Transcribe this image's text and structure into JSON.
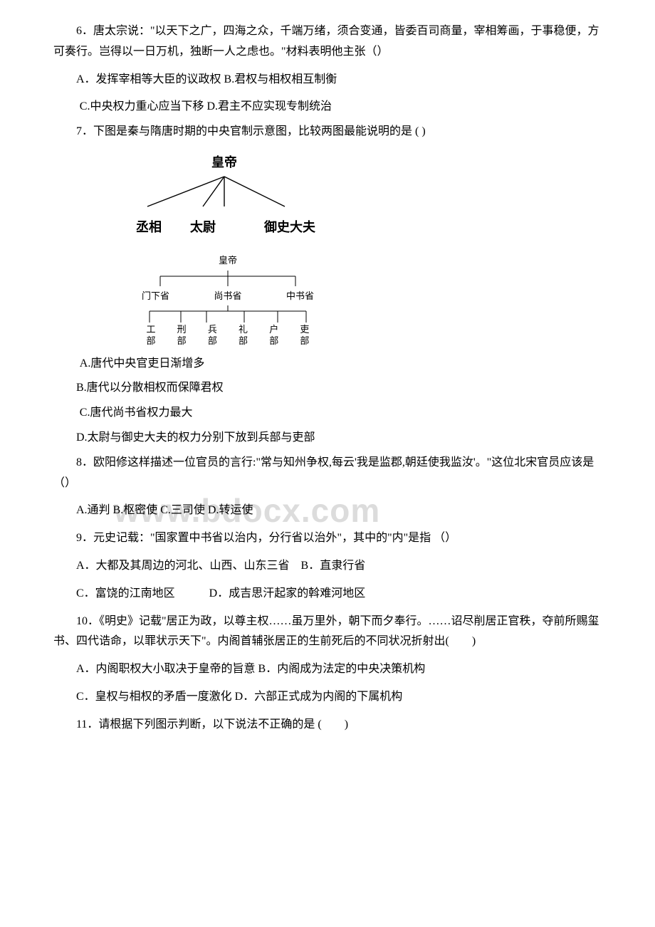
{
  "watermark": "www.bdocx.com",
  "q6": {
    "stem": "6．唐太宗说：\"以天下之广，四海之众，千端万绪，须合变通，皆委百司商量，宰相筹画，于事稳便，方可奏行。岂得以一日万机，独断一人之虑也。\"材料表明他主张（）",
    "lineA": "A．发挥宰相等大臣的议政权 B.君权与相权相互制衡",
    "lineC": "C.中央权力重心应当下移 D.君主不应实现专制统治"
  },
  "q7": {
    "stem": "7．下图是秦与隋唐时期的中央官制示意图，比较两图最能说明的是 ( )",
    "d1": {
      "top": "皇帝",
      "l1": "丞相",
      "l2": "太尉",
      "l3": "御史大夫"
    },
    "d2": {
      "top": "皇帝",
      "mid": [
        "门下省",
        "尚书省",
        "中书省"
      ],
      "bot": [
        "工部",
        "刑部",
        "兵部",
        "礼部",
        "户部",
        "吏部"
      ]
    },
    "optA": "A.唐代中央官吏日渐增多",
    "optB": "B.唐代以分散相权而保障君权",
    "optC": "C.唐代尚书省权力最大",
    "optD": "D.太尉与御史大夫的权力分别下放到兵部与吏部"
  },
  "q8": {
    "stem": "8．欧阳修这样描述一位官员的言行:\"常与知州争权,每云'我是监郡,朝廷使我监汝'。\"这位北宋官员应该是（）",
    "opts": "A.通判  B.枢密使  C.三司使  D.转运使"
  },
  "q9": {
    "stem": "9．元史记载：\"国家置中书省以治内，分行省以治外\"，其中的\"内\"是指 （）",
    "lineA": "A．大都及其周边的河北、山西、山东三省　B．直隶行省",
    "lineC": "C．富饶的江南地区　　　D．成吉思汗起家的斡难河地区"
  },
  "q10": {
    "stem": "10．《明史》记载\"居正为政，以尊主权……虽万里外，朝下而夕奉行。……诏尽削居正官秩，夺前所赐玺书、四代诰命，以罪状示天下\"。内阁首辅张居正的生前死后的不同状况折射出(　　)",
    "lineA": "A．内阁职权大小取决于皇帝的旨意 B．内阁成为法定的中央决策机构",
    "lineC": "C．皇权与相权的矛盾一度激化 D．六部正式成为内阁的下属机构"
  },
  "q11": {
    "stem": "11．请根据下列图示判断，以下说法不正确的是 (　　)"
  }
}
